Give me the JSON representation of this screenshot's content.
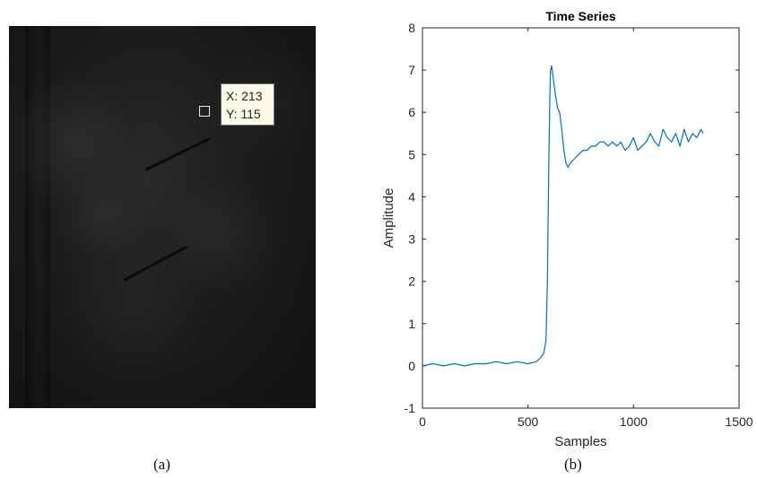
{
  "panel_a": {
    "datatip": {
      "x_text": "X: 213",
      "y_text": "Y: 115"
    },
    "caption": "(a)"
  },
  "panel_b": {
    "caption": "(b)"
  },
  "chart_data": {
    "type": "line",
    "title": "Time Series",
    "xlabel": "Samples",
    "ylabel": "Amplitude",
    "xlim": [
      0,
      1500
    ],
    "ylim": [
      -1,
      8
    ],
    "xticks": [
      0,
      500,
      1000,
      1500
    ],
    "yticks": [
      -1,
      0,
      1,
      2,
      3,
      4,
      5,
      6,
      7,
      8
    ],
    "grid": false,
    "line_color": "#0072bd",
    "series": [
      {
        "x": [
          0,
          50,
          100,
          150,
          200,
          250,
          300,
          350,
          400,
          450,
          500,
          540,
          560,
          575,
          585,
          592,
          598,
          603,
          607,
          612,
          620,
          630,
          640,
          650,
          660,
          670,
          680,
          690,
          700,
          720,
          740,
          760,
          780,
          800,
          820,
          840,
          860,
          880,
          900,
          920,
          940,
          960,
          980,
          1000,
          1020,
          1040,
          1060,
          1080,
          1100,
          1120,
          1140,
          1160,
          1180,
          1200,
          1220,
          1240,
          1260,
          1280,
          1300,
          1320,
          1330
        ],
        "y": [
          0.0,
          0.05,
          0.0,
          0.05,
          0.0,
          0.05,
          0.05,
          0.1,
          0.05,
          0.1,
          0.05,
          0.1,
          0.2,
          0.3,
          0.6,
          2.0,
          4.5,
          6.2,
          7.0,
          7.1,
          6.8,
          6.4,
          6.1,
          6.0,
          5.6,
          5.1,
          4.8,
          4.7,
          4.8,
          4.9,
          5.0,
          5.1,
          5.1,
          5.2,
          5.2,
          5.3,
          5.3,
          5.2,
          5.3,
          5.2,
          5.3,
          5.1,
          5.2,
          5.4,
          5.1,
          5.2,
          5.3,
          5.5,
          5.3,
          5.2,
          5.6,
          5.4,
          5.3,
          5.5,
          5.2,
          5.6,
          5.3,
          5.5,
          5.4,
          5.6,
          5.5
        ]
      }
    ]
  }
}
